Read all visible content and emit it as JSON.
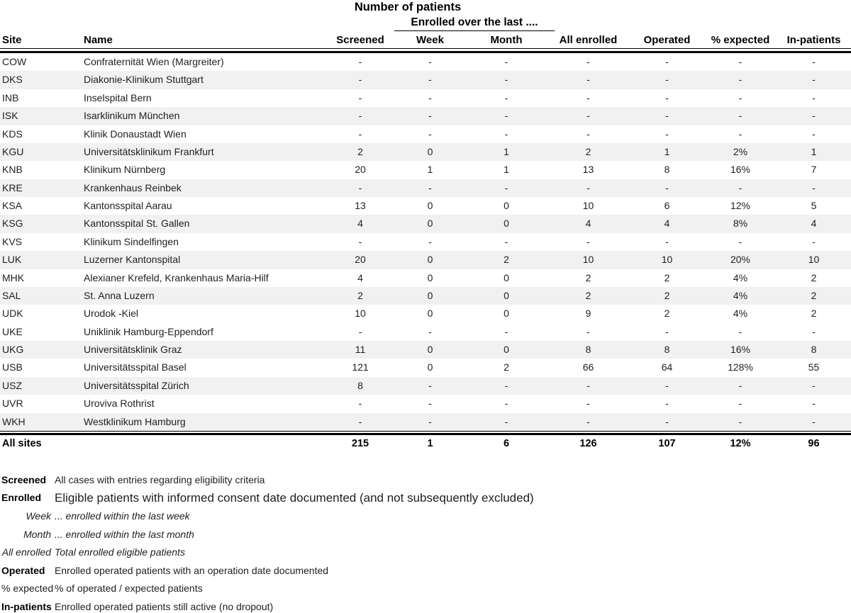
{
  "title": "Number of patients",
  "group_header": "Enrolled over the last ....",
  "columns": [
    "Site",
    "Name",
    "Screened",
    "Week",
    "Month",
    "All enrolled",
    "Operated",
    "% expected",
    "In-patients"
  ],
  "rows": [
    {
      "site": "COW",
      "name": "Confraternität Wien (Margreiter)",
      "cells": [
        "-",
        "-",
        "-",
        "-",
        "-",
        "-",
        "-"
      ],
      "shaded": false
    },
    {
      "site": "DKS",
      "name": "Diakonie-Klinikum Stuttgart",
      "cells": [
        "-",
        "-",
        "-",
        "-",
        "-",
        "-",
        "-"
      ],
      "shaded": true
    },
    {
      "site": "INB",
      "name": "Inselspital Bern",
      "cells": [
        "-",
        "-",
        "-",
        "-",
        "-",
        "-",
        "-"
      ],
      "shaded": false
    },
    {
      "site": "ISK",
      "name": "Isarklinikum München",
      "cells": [
        "-",
        "-",
        "-",
        "-",
        "-",
        "-",
        "-"
      ],
      "shaded": true
    },
    {
      "site": "KDS",
      "name": "Klinik Donaustadt Wien",
      "cells": [
        "-",
        "-",
        "-",
        "-",
        "-",
        "-",
        "-"
      ],
      "shaded": false
    },
    {
      "site": "KGU",
      "name": "Universitätsklinikum Frankfurt",
      "cells": [
        "2",
        "0",
        "1",
        "2",
        "1",
        "2%",
        "1"
      ],
      "shaded": true
    },
    {
      "site": "KNB",
      "name": "Klinikum Nürnberg",
      "cells": [
        "20",
        "1",
        "1",
        "13",
        "8",
        "16%",
        "7"
      ],
      "shaded": false
    },
    {
      "site": "KRE",
      "name": "Krankenhaus Reinbek",
      "cells": [
        "-",
        "-",
        "-",
        "-",
        "-",
        "-",
        "-"
      ],
      "shaded": true
    },
    {
      "site": "KSA",
      "name": "Kantonsspital Aarau",
      "cells": [
        "13",
        "0",
        "0",
        "10",
        "6",
        "12%",
        "5"
      ],
      "shaded": false
    },
    {
      "site": "KSG",
      "name": "Kantonsspital St. Gallen",
      "cells": [
        "4",
        "0",
        "0",
        "4",
        "4",
        "8%",
        "4"
      ],
      "shaded": true
    },
    {
      "site": "KVS",
      "name": "Klinikum Sindelfingen",
      "cells": [
        "-",
        "-",
        "-",
        "-",
        "-",
        "-",
        "-"
      ],
      "shaded": false
    },
    {
      "site": "LUK",
      "name": "Luzerner Kantonspital",
      "cells": [
        "20",
        "0",
        "2",
        "10",
        "10",
        "20%",
        "10"
      ],
      "shaded": true
    },
    {
      "site": "MHK",
      "name": "Alexianer Krefeld, Krankenhaus Maria-Hilf",
      "cells": [
        "4",
        "0",
        "0",
        "2",
        "2",
        "4%",
        "2"
      ],
      "shaded": false
    },
    {
      "site": "SAL",
      "name": "St. Anna Luzern",
      "cells": [
        "2",
        "0",
        "0",
        "2",
        "2",
        "4%",
        "2"
      ],
      "shaded": true
    },
    {
      "site": "UDK",
      "name": "Urodok -Kiel",
      "cells": [
        "10",
        "0",
        "0",
        "9",
        "2",
        "4%",
        "2"
      ],
      "shaded": false
    },
    {
      "site": "UKE",
      "name": "Uniklinik Hamburg-Eppendorf",
      "cells": [
        "-",
        "-",
        "-",
        "-",
        "-",
        "-",
        "-"
      ],
      "shaded": false
    },
    {
      "site": "UKG",
      "name": "Universitätsklinik Graz",
      "cells": [
        "11",
        "0",
        "0",
        "8",
        "8",
        "16%",
        "8"
      ],
      "shaded": true
    },
    {
      "site": "USB",
      "name": "Universitätsspital Basel",
      "cells": [
        "121",
        "0",
        "2",
        "66",
        "64",
        "128%",
        "55"
      ],
      "shaded": false
    },
    {
      "site": "USZ",
      "name": "Universitätsspital Zürich",
      "cells": [
        "8",
        "-",
        "-",
        "-",
        "-",
        "-",
        "-"
      ],
      "shaded": true
    },
    {
      "site": "UVR",
      "name": "Uroviva Rothrist",
      "cells": [
        "-",
        "-",
        "-",
        "-",
        "-",
        "-",
        "-"
      ],
      "shaded": false
    },
    {
      "site": "WKH",
      "name": "Westklinikum Hamburg",
      "cells": [
        "-",
        "-",
        "-",
        "-",
        "-",
        "-",
        "-"
      ],
      "shaded": true
    }
  ],
  "totals": {
    "label": "All sites",
    "cells": [
      "215",
      "1",
      "6",
      "126",
      "107",
      "12%",
      "96"
    ]
  },
  "legend": [
    {
      "label": "Screened",
      "desc": "All cases with entries regarding eligibility criteria",
      "label_style": "bold",
      "desc_style": "regular"
    },
    {
      "label": "Enrolled",
      "desc": "Eligible patients with informed consent date documented (and not subsequently excluded)",
      "label_style": "bold",
      "desc_style": "large"
    },
    {
      "label": "Week",
      "desc": "... enrolled within the last week",
      "label_style": "italic",
      "desc_style": "italic"
    },
    {
      "label": "Month",
      "desc": "... enrolled within the last month",
      "label_style": "italic",
      "desc_style": "italic"
    },
    {
      "label": "All enrolled",
      "desc": "Total enrolled eligible patients",
      "label_style": "italic",
      "desc_style": "italic"
    },
    {
      "label": "Operated",
      "desc": "Enrolled operated patients with an operation date documented",
      "label_style": "bold",
      "desc_style": "regular"
    },
    {
      "label": "% expected",
      "desc": "% of operated / expected patients",
      "label_style": "regular",
      "desc_style": "regular"
    },
    {
      "label": "In-patients",
      "desc": "Enrolled operated patients still active (no dropout)",
      "label_style": "bold",
      "desc_style": "regular"
    }
  ],
  "colors": {
    "stripe": "#f1f1f1",
    "text": "#1f1f1f",
    "rule": "#000000"
  }
}
